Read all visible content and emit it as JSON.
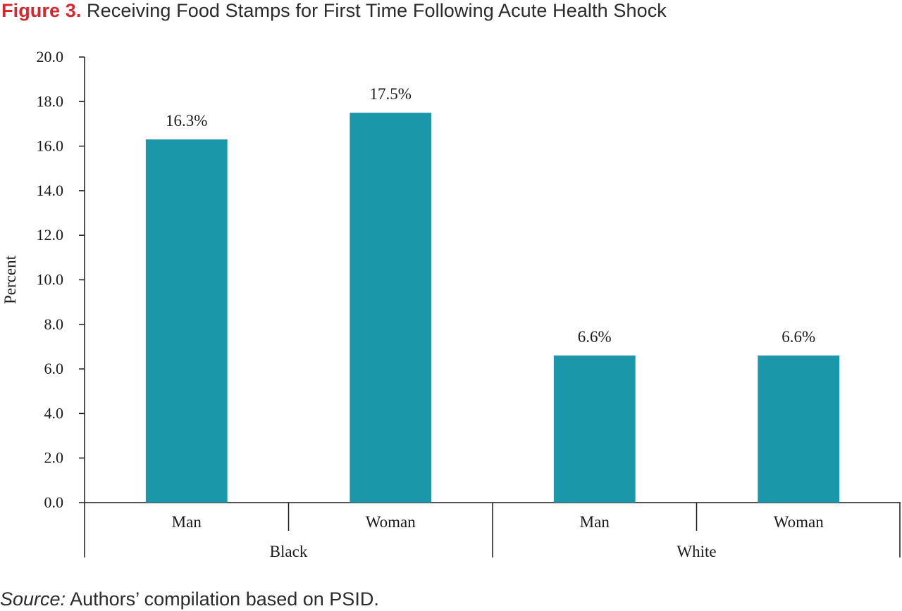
{
  "figure": {
    "label": "Figure 3.",
    "title": "Receiving Food Stamps for First Time Following Acute Health Shock"
  },
  "source": {
    "label": "Source:",
    "text": "Authors’ compilation based on PSID."
  },
  "chart_data": {
    "type": "bar",
    "ylabel": "Percent",
    "ylim": [
      0,
      20
    ],
    "y_ticks": [
      "0.0",
      "2.0",
      "4.0",
      "6.0",
      "8.0",
      "10.0",
      "12.0",
      "14.0",
      "16.0",
      "18.0",
      "20.0"
    ],
    "groups": [
      {
        "name": "Black",
        "categories": [
          "Man",
          "Woman"
        ],
        "values": [
          16.3,
          17.5
        ],
        "data_labels": [
          "16.3%",
          "17.5%"
        ]
      },
      {
        "name": "White",
        "categories": [
          "Man",
          "Woman"
        ],
        "values": [
          6.6,
          6.6
        ],
        "data_labels": [
          "6.6%",
          "6.6%"
        ]
      }
    ],
    "bar_color": "#1b97aa",
    "axis_color": "#1a1a1a",
    "grid": false,
    "legend": "none"
  }
}
